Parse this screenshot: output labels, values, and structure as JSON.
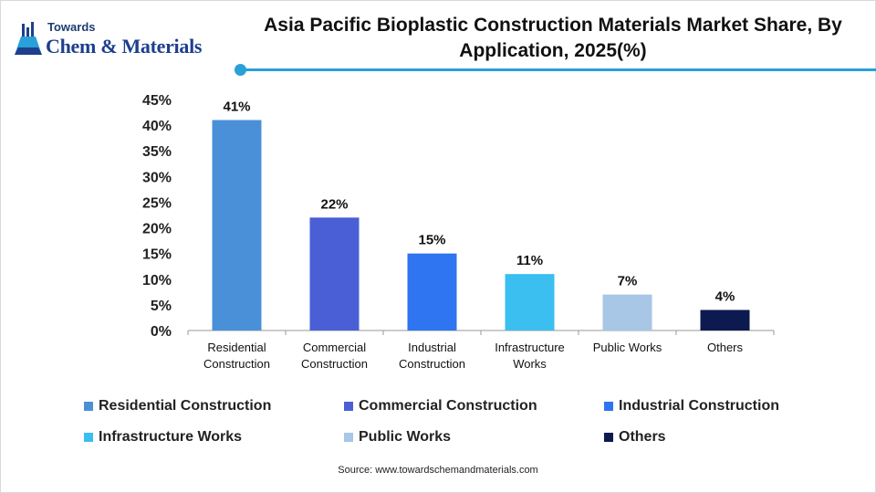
{
  "logo": {
    "line1": "Towards",
    "line2": "Chem & Materials"
  },
  "title": "Asia Pacific Bioplastic Construction Materials Market Share, By Application, 2025(%)",
  "source": "Source: www.towardschemandmaterials.com",
  "chart_data": {
    "type": "bar",
    "title": "Asia Pacific Bioplastic Construction Materials Market Share, By Application, 2025(%)",
    "categories": [
      [
        "Residential",
        "Construction"
      ],
      [
        "Commercial",
        "Construction"
      ],
      [
        "Industrial",
        "Construction"
      ],
      [
        "Infrastructure",
        "Works"
      ],
      [
        "Public Works"
      ],
      [
        "Others"
      ]
    ],
    "values": [
      41,
      22,
      15,
      11,
      7,
      4
    ],
    "value_labels": [
      "41%",
      "22%",
      "15%",
      "11%",
      "7%",
      "4%"
    ],
    "colors": [
      "#4a90d9",
      "#4a5fd6",
      "#2f74f0",
      "#3bbef0",
      "#a8c6e6",
      "#0d1a4f"
    ],
    "ylim": [
      0,
      45
    ],
    "yticks": [
      0,
      5,
      10,
      15,
      20,
      25,
      30,
      35,
      40,
      45
    ],
    "ytick_labels": [
      "0%",
      "5%",
      "10%",
      "15%",
      "20%",
      "25%",
      "30%",
      "35%",
      "40%",
      "45%"
    ],
    "grid": false,
    "legend_position": "bottom",
    "legend": [
      "Residential Construction",
      "Commercial Construction",
      "Industrial Construction",
      "Infrastructure Works",
      "Public Works",
      "Others"
    ]
  }
}
